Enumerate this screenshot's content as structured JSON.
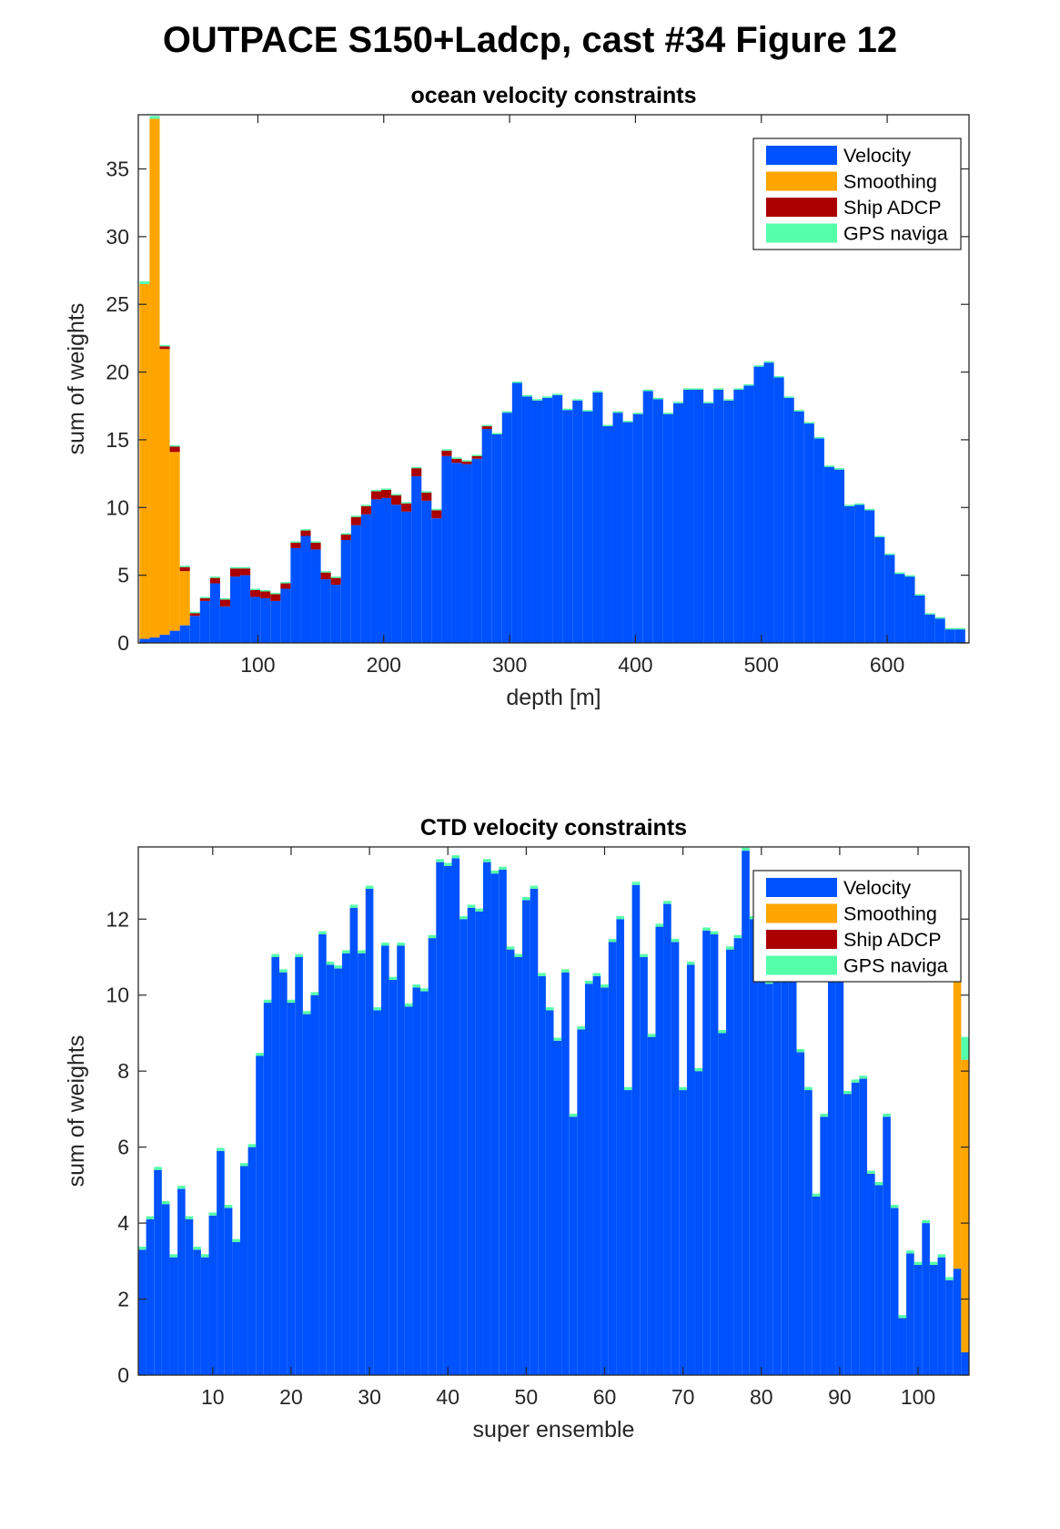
{
  "figure_title": "OUTPACE S150+Ladcp, cast #34  Figure 12",
  "colors": {
    "velocity": "#0052FF",
    "smoothing": "#FFA500",
    "ship_adcp": "#AA0000",
    "gps_navigation": "#55FFAA"
  },
  "chart_data": [
    {
      "type": "bar",
      "stacked": true,
      "title": "ocean velocity constraints",
      "xlabel": "depth [m]",
      "ylabel": "sum of weights",
      "xlim": [
        5,
        665
      ],
      "ylim": [
        0,
        39
      ],
      "xticks": [
        100,
        200,
        300,
        400,
        500,
        600
      ],
      "yticks": [
        0,
        5,
        10,
        15,
        20,
        25,
        30,
        35
      ],
      "grid": false,
      "legend_position": "top-right",
      "legend": [
        "Velocity",
        "Smoothing",
        "Ship ADCP",
        "GPS naviga"
      ],
      "bin_width": 8,
      "x": [
        10,
        18,
        26,
        34,
        42,
        50,
        58,
        66,
        74,
        82,
        90,
        98,
        106,
        114,
        122,
        130,
        138,
        146,
        154,
        162,
        170,
        178,
        186,
        194,
        202,
        210,
        218,
        226,
        234,
        242,
        250,
        258,
        266,
        274,
        282,
        290,
        298,
        306,
        314,
        322,
        330,
        338,
        346,
        354,
        362,
        370,
        378,
        386,
        394,
        402,
        410,
        418,
        426,
        434,
        442,
        450,
        458,
        466,
        474,
        482,
        490,
        498,
        506,
        514,
        522,
        530,
        538,
        546,
        554,
        562,
        570,
        578,
        586,
        594,
        602,
        610,
        618,
        626,
        634,
        642,
        650,
        658
      ],
      "series": [
        {
          "name": "Velocity",
          "values": [
            0.3,
            0.4,
            0.6,
            0.9,
            1.3,
            2.0,
            3.1,
            4.4,
            2.7,
            4.9,
            5.0,
            3.4,
            3.3,
            3.1,
            4.0,
            7.0,
            7.9,
            6.9,
            4.7,
            4.3,
            7.6,
            8.7,
            9.5,
            10.6,
            10.7,
            10.2,
            9.7,
            12.3,
            10.5,
            9.2,
            13.8,
            13.3,
            13.2,
            13.6,
            15.8,
            15.4,
            17.0,
            19.2,
            18.2,
            17.9,
            18.1,
            18.3,
            17.2,
            17.9,
            17.1,
            18.5,
            16.0,
            17.0,
            16.3,
            16.9,
            18.6,
            18.0,
            16.9,
            17.7,
            18.7,
            18.7,
            17.7,
            18.7,
            17.9,
            18.7,
            19.0,
            20.4,
            20.7,
            19.6,
            18.1,
            17.1,
            16.2,
            15.1,
            13.0,
            12.8,
            10.1,
            10.2,
            9.8,
            7.8,
            6.5,
            5.1,
            4.9,
            3.5,
            2.1,
            1.8,
            1.0,
            1.0
          ]
        },
        {
          "name": "Smoothing",
          "values": [
            26.2,
            38.3,
            21.1,
            13.2,
            4.0,
            0,
            0,
            0,
            0,
            0,
            0,
            0,
            0,
            0,
            0,
            0,
            0,
            0,
            0,
            0,
            0,
            0,
            0,
            0,
            0,
            0,
            0,
            0,
            0,
            0,
            0,
            0,
            0,
            0,
            0,
            0,
            0,
            0,
            0,
            0,
            0,
            0,
            0,
            0,
            0,
            0,
            0,
            0,
            0,
            0,
            0,
            0,
            0,
            0,
            0,
            0,
            0,
            0,
            0,
            0,
            0,
            0,
            0,
            0,
            0,
            0,
            0,
            0,
            0,
            0,
            0,
            0,
            0,
            0,
            0,
            0,
            0,
            0,
            0,
            0,
            0,
            0
          ]
        },
        {
          "name": "Ship ADCP",
          "values": [
            0,
            0,
            0.2,
            0.4,
            0.3,
            0.2,
            0.2,
            0.4,
            0.5,
            0.6,
            0.5,
            0.5,
            0.5,
            0.5,
            0.4,
            0.4,
            0.4,
            0.5,
            0.5,
            0.5,
            0.4,
            0.6,
            0.6,
            0.6,
            0.6,
            0.7,
            0.6,
            0.6,
            0.6,
            0.6,
            0.4,
            0.3,
            0.2,
            0.2,
            0.2,
            0,
            0,
            0,
            0,
            0,
            0,
            0,
            0,
            0,
            0,
            0,
            0,
            0,
            0,
            0,
            0,
            0,
            0,
            0,
            0,
            0,
            0,
            0,
            0,
            0,
            0,
            0,
            0,
            0,
            0,
            0,
            0,
            0,
            0,
            0,
            0,
            0,
            0,
            0,
            0,
            0,
            0,
            0,
            0,
            0,
            0,
            0
          ]
        },
        {
          "name": "GPS naviga",
          "values": [
            0.2,
            0.2,
            0.1,
            0.1,
            0.1,
            0.1,
            0.1,
            0.1,
            0.1,
            0.1,
            0.1,
            0.1,
            0.1,
            0.1,
            0.1,
            0.1,
            0.1,
            0.1,
            0.1,
            0.1,
            0.1,
            0.1,
            0.1,
            0.1,
            0.1,
            0.1,
            0.1,
            0.1,
            0.1,
            0.1,
            0.1,
            0.1,
            0.1,
            0.1,
            0.1,
            0.1,
            0.1,
            0.1,
            0.1,
            0.1,
            0.1,
            0.1,
            0.1,
            0.1,
            0.1,
            0.1,
            0.1,
            0.1,
            0.1,
            0.1,
            0.1,
            0.1,
            0.1,
            0.1,
            0.1,
            0.1,
            0.1,
            0.1,
            0.1,
            0.1,
            0.1,
            0.1,
            0.1,
            0.1,
            0.1,
            0.1,
            0.1,
            0.1,
            0.1,
            0.1,
            0.1,
            0.1,
            0.1,
            0.1,
            0.1,
            0.1,
            0.1,
            0.1,
            0.1,
            0.1,
            0.1,
            0.1
          ]
        }
      ]
    },
    {
      "type": "bar",
      "stacked": true,
      "title": "CTD velocity constraints",
      "xlabel": "super ensemble",
      "ylabel": "sum of weights",
      "xlim": [
        0.5,
        106.5
      ],
      "ylim": [
        0,
        13.9
      ],
      "xticks": [
        10,
        20,
        30,
        40,
        50,
        60,
        70,
        80,
        90,
        100
      ],
      "yticks": [
        0,
        2,
        4,
        6,
        8,
        10,
        12
      ],
      "grid": false,
      "legend_position": "top-right",
      "legend": [
        "Velocity",
        "Smoothing",
        "Ship ADCP",
        "GPS naviga"
      ],
      "bin_width": 1,
      "x": [
        1,
        2,
        3,
        4,
        5,
        6,
        7,
        8,
        9,
        10,
        11,
        12,
        13,
        14,
        15,
        16,
        17,
        18,
        19,
        20,
        21,
        22,
        23,
        24,
        25,
        26,
        27,
        28,
        29,
        30,
        31,
        32,
        33,
        34,
        35,
        36,
        37,
        38,
        39,
        40,
        41,
        42,
        43,
        44,
        45,
        46,
        47,
        48,
        49,
        50,
        51,
        52,
        53,
        54,
        55,
        56,
        57,
        58,
        59,
        60,
        61,
        62,
        63,
        64,
        65,
        66,
        67,
        68,
        69,
        70,
        71,
        72,
        73,
        74,
        75,
        76,
        77,
        78,
        79,
        80,
        81,
        82,
        83,
        84,
        85,
        86,
        87,
        88,
        89,
        90,
        91,
        92,
        93,
        94,
        95,
        96,
        97,
        98,
        99,
        100,
        101,
        102,
        103,
        104,
        105,
        106
      ],
      "series": [
        {
          "name": "Velocity",
          "values": [
            3.3,
            4.1,
            5.4,
            4.5,
            3.1,
            4.9,
            4.1,
            3.3,
            3.1,
            4.2,
            5.9,
            4.4,
            3.5,
            5.5,
            6.0,
            8.4,
            9.8,
            11.0,
            10.6,
            9.8,
            11.0,
            9.5,
            10.0,
            11.6,
            10.8,
            10.7,
            11.1,
            12.3,
            11.1,
            12.8,
            9.6,
            11.3,
            10.4,
            11.3,
            9.7,
            10.2,
            10.1,
            11.5,
            13.5,
            13.4,
            13.6,
            12.0,
            12.3,
            12.2,
            13.5,
            13.2,
            13.3,
            11.2,
            11.0,
            12.5,
            12.8,
            10.5,
            9.6,
            8.8,
            10.6,
            6.8,
            9.1,
            10.3,
            10.5,
            10.2,
            11.4,
            12.0,
            7.5,
            12.9,
            11.0,
            8.9,
            11.8,
            12.4,
            11.4,
            7.5,
            10.8,
            8.0,
            11.7,
            11.6,
            9.0,
            11.2,
            11.5,
            13.8,
            12.0,
            11.5,
            10.3,
            10.8,
            10.6,
            11.1,
            8.5,
            7.5,
            4.7,
            6.8,
            10.5,
            10.8,
            7.4,
            7.7,
            7.8,
            5.3,
            5.0,
            6.8,
            4.4,
            1.5,
            3.2,
            2.9,
            4.0,
            2.9,
            3.1,
            2.5,
            2.8,
            0.6
          ]
        },
        {
          "name": "Smoothing",
          "values": [
            0,
            0,
            0,
            0,
            0,
            0,
            0,
            0,
            0,
            0,
            0,
            0,
            0,
            0,
            0,
            0,
            0,
            0,
            0,
            0,
            0,
            0,
            0,
            0,
            0,
            0,
            0,
            0,
            0,
            0,
            0,
            0,
            0,
            0,
            0,
            0,
            0,
            0,
            0,
            0,
            0,
            0,
            0,
            0,
            0,
            0,
            0,
            0,
            0,
            0,
            0,
            0,
            0,
            0,
            0,
            0,
            0,
            0,
            0,
            0,
            0,
            0,
            0,
            0,
            0,
            0,
            0,
            0,
            0,
            0,
            0,
            0,
            0,
            0,
            0,
            0,
            0,
            0,
            0,
            0,
            0,
            0,
            0,
            0,
            0,
            0,
            0,
            0,
            0,
            0,
            0,
            0,
            0,
            0,
            0,
            0,
            0,
            0,
            0,
            0,
            0,
            0,
            0,
            0,
            7.7,
            7.7
          ]
        },
        {
          "name": "Ship ADCP",
          "values": [
            0,
            0,
            0,
            0,
            0,
            0,
            0,
            0,
            0,
            0,
            0,
            0,
            0,
            0,
            0,
            0,
            0,
            0,
            0,
            0,
            0,
            0,
            0,
            0,
            0,
            0,
            0,
            0,
            0,
            0,
            0,
            0,
            0,
            0,
            0,
            0,
            0,
            0,
            0,
            0,
            0,
            0,
            0,
            0,
            0,
            0,
            0,
            0,
            0,
            0,
            0,
            0,
            0,
            0,
            0,
            0,
            0,
            0,
            0,
            0,
            0,
            0,
            0,
            0,
            0,
            0,
            0,
            0,
            0,
            0,
            0,
            0,
            0,
            0,
            0,
            0,
            0,
            0,
            0,
            0,
            0,
            0,
            0,
            0,
            0,
            0,
            0,
            0,
            0,
            0,
            0,
            0,
            0,
            0,
            0,
            0,
            0,
            0,
            0,
            0,
            0,
            0,
            0,
            0,
            0,
            0
          ]
        },
        {
          "name": "GPS naviga",
          "values": [
            0.08,
            0.08,
            0.08,
            0.08,
            0.08,
            0.08,
            0.08,
            0.08,
            0.08,
            0.08,
            0.08,
            0.08,
            0.08,
            0.08,
            0.08,
            0.08,
            0.08,
            0.08,
            0.08,
            0.08,
            0.08,
            0.08,
            0.08,
            0.08,
            0.08,
            0.08,
            0.08,
            0.08,
            0.08,
            0.08,
            0.08,
            0.08,
            0.08,
            0.08,
            0.08,
            0.08,
            0.08,
            0.08,
            0.08,
            0.08,
            0.08,
            0.08,
            0.08,
            0.08,
            0.08,
            0.08,
            0.08,
            0.08,
            0.08,
            0.08,
            0.08,
            0.08,
            0.08,
            0.08,
            0.08,
            0.08,
            0.08,
            0.08,
            0.08,
            0.08,
            0.08,
            0.08,
            0.08,
            0.08,
            0.08,
            0.08,
            0.08,
            0.08,
            0.08,
            0.08,
            0.08,
            0.08,
            0.08,
            0.08,
            0.08,
            0.08,
            0.08,
            0.08,
            0.08,
            0.08,
            0.08,
            0.08,
            0.08,
            0.08,
            0.08,
            0.08,
            0.08,
            0.08,
            0.08,
            0.08,
            0.08,
            0.08,
            0.08,
            0.08,
            0.08,
            0.08,
            0.08,
            0.08,
            0.08,
            0.08,
            0.08,
            0.08,
            0.08,
            0.08,
            0.4,
            0.6
          ]
        }
      ]
    }
  ]
}
